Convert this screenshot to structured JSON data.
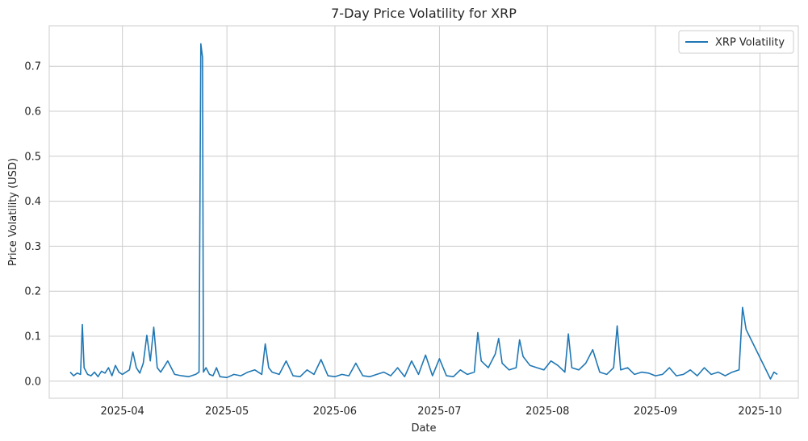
{
  "chart_data": {
    "type": "line",
    "title": "7-Day Price Volatility for XRP",
    "xlabel": "Date",
    "ylabel": "Price Volatility (USD)",
    "x_tick_labels": [
      "2025-04",
      "2025-05",
      "2025-06",
      "2025-07",
      "2025-08",
      "2025-09",
      "2025-10"
    ],
    "x_ticks": [
      "2025-04-01",
      "2025-05-01",
      "2025-06-01",
      "2025-07-01",
      "2025-08-01",
      "2025-09-01",
      "2025-10-01"
    ],
    "y_ticks": [
      0.0,
      0.1,
      0.2,
      0.3,
      0.4,
      0.5,
      0.6,
      0.7
    ],
    "y_tick_labels": [
      "0.0",
      "0.1",
      "0.2",
      "0.3",
      "0.4",
      "0.5",
      "0.6",
      "0.7"
    ],
    "xlim": [
      "2025-03-11",
      "2025-10-12"
    ],
    "ylim": [
      -0.038,
      0.79
    ],
    "grid": true,
    "legend_position": "top-right",
    "colors": {
      "series": "#1f77b4",
      "grid": "#cccccc",
      "spine": "#cccccc",
      "background": "#ffffff"
    },
    "series": [
      {
        "name": "XRP Volatility",
        "x": [
          "2025-03-17",
          "2025-03-18",
          "2025-03-19",
          "2025-03-20",
          "2025-03-20T12",
          "2025-03-21",
          "2025-03-22",
          "2025-03-23",
          "2025-03-24",
          "2025-03-25",
          "2025-03-26",
          "2025-03-27",
          "2025-03-28",
          "2025-03-29",
          "2025-03-30",
          "2025-03-31",
          "2025-04-01",
          "2025-04-02",
          "2025-04-03",
          "2025-04-04",
          "2025-04-05",
          "2025-04-06",
          "2025-04-07",
          "2025-04-08",
          "2025-04-09",
          "2025-04-10",
          "2025-04-11",
          "2025-04-12",
          "2025-04-14",
          "2025-04-16",
          "2025-04-18",
          "2025-04-20",
          "2025-04-22",
          "2025-04-23",
          "2025-04-23T12",
          "2025-04-24",
          "2025-04-24T06",
          "2025-04-25",
          "2025-04-26",
          "2025-04-27",
          "2025-04-28",
          "2025-04-29",
          "2025-05-01",
          "2025-05-03",
          "2025-05-05",
          "2025-05-07",
          "2025-05-09",
          "2025-05-11",
          "2025-05-12",
          "2025-05-13",
          "2025-05-14",
          "2025-05-16",
          "2025-05-18",
          "2025-05-20",
          "2025-05-22",
          "2025-05-24",
          "2025-05-26",
          "2025-05-28",
          "2025-05-30",
          "2025-06-01",
          "2025-06-03",
          "2025-06-05",
          "2025-06-07",
          "2025-06-09",
          "2025-06-11",
          "2025-06-13",
          "2025-06-15",
          "2025-06-17",
          "2025-06-19",
          "2025-06-21",
          "2025-06-23",
          "2025-06-25",
          "2025-06-27",
          "2025-06-29",
          "2025-07-01",
          "2025-07-03",
          "2025-07-05",
          "2025-07-07",
          "2025-07-09",
          "2025-07-11",
          "2025-07-12",
          "2025-07-13",
          "2025-07-15",
          "2025-07-17",
          "2025-07-18",
          "2025-07-19",
          "2025-07-21",
          "2025-07-23",
          "2025-07-24",
          "2025-07-25",
          "2025-07-27",
          "2025-07-29",
          "2025-07-31",
          "2025-08-02",
          "2025-08-04",
          "2025-08-06",
          "2025-08-07",
          "2025-08-08",
          "2025-08-10",
          "2025-08-12",
          "2025-08-14",
          "2025-08-16",
          "2025-08-18",
          "2025-08-20",
          "2025-08-21",
          "2025-08-22",
          "2025-08-24",
          "2025-08-26",
          "2025-08-28",
          "2025-08-30",
          "2025-09-01",
          "2025-09-03",
          "2025-09-05",
          "2025-09-07",
          "2025-09-09",
          "2025-09-11",
          "2025-09-13",
          "2025-09-15",
          "2025-09-17",
          "2025-09-19",
          "2025-09-21",
          "2025-09-23",
          "2025-09-25",
          "2025-09-26",
          "2025-09-27",
          "2025-10-04",
          "2025-10-05",
          "2025-10-06"
        ],
        "y": [
          0.02,
          0.012,
          0.018,
          0.015,
          0.126,
          0.03,
          0.015,
          0.012,
          0.02,
          0.01,
          0.022,
          0.018,
          0.03,
          0.012,
          0.035,
          0.02,
          0.015,
          0.02,
          0.025,
          0.065,
          0.03,
          0.018,
          0.04,
          0.102,
          0.045,
          0.12,
          0.03,
          0.02,
          0.045,
          0.015,
          0.012,
          0.01,
          0.015,
          0.02,
          0.75,
          0.72,
          0.02,
          0.03,
          0.015,
          0.012,
          0.03,
          0.01,
          0.008,
          0.015,
          0.012,
          0.02,
          0.025,
          0.015,
          0.083,
          0.03,
          0.02,
          0.015,
          0.045,
          0.012,
          0.01,
          0.025,
          0.015,
          0.048,
          0.012,
          0.01,
          0.015,
          0.012,
          0.04,
          0.012,
          0.01,
          0.015,
          0.02,
          0.012,
          0.03,
          0.01,
          0.045,
          0.015,
          0.058,
          0.012,
          0.05,
          0.012,
          0.01,
          0.025,
          0.015,
          0.02,
          0.108,
          0.045,
          0.03,
          0.06,
          0.095,
          0.04,
          0.025,
          0.03,
          0.092,
          0.055,
          0.035,
          0.03,
          0.025,
          0.045,
          0.035,
          0.02,
          0.105,
          0.03,
          0.025,
          0.04,
          0.07,
          0.02,
          0.015,
          0.03,
          0.123,
          0.025,
          0.03,
          0.015,
          0.02,
          0.018,
          0.012,
          0.015,
          0.03,
          0.012,
          0.015,
          0.025,
          0.012,
          0.03,
          0.015,
          0.02,
          0.012,
          0.02,
          0.025,
          0.164,
          0.115,
          0.005,
          0.02,
          0.015
        ]
      }
    ]
  },
  "legend": {
    "label": "XRP Volatility"
  }
}
